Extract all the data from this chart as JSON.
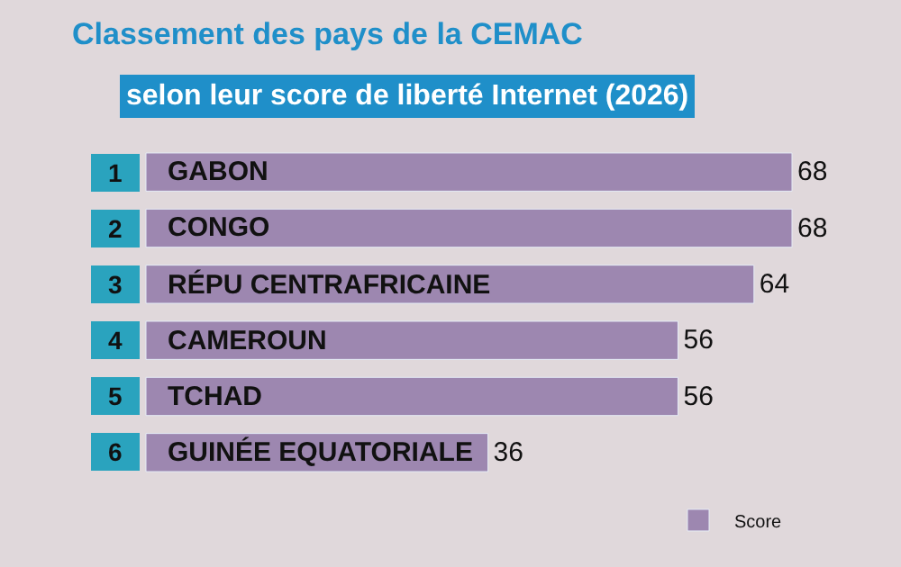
{
  "chart_data": {
    "type": "bar",
    "orientation": "horizontal",
    "title": "Classement des pays de la CEMAC",
    "subtitle": "selon leur score de liberté Internet (2026)",
    "categories": [
      "GABON",
      "CONGO",
      "RÉPU CENTRAFRICAINE",
      "CAMEROUN",
      "TCHAD",
      "GUINÉE EQUATORIALE"
    ],
    "series": [
      {
        "name": "Score",
        "color": "#9d87b0",
        "values": [
          68,
          68,
          64,
          56,
          56,
          36
        ]
      }
    ],
    "annotations": [
      "1",
      "2",
      "3",
      "4",
      "5",
      "6"
    ],
    "data_labels": true,
    "tick_labels": false,
    "legend": "bottom right"
  }
}
